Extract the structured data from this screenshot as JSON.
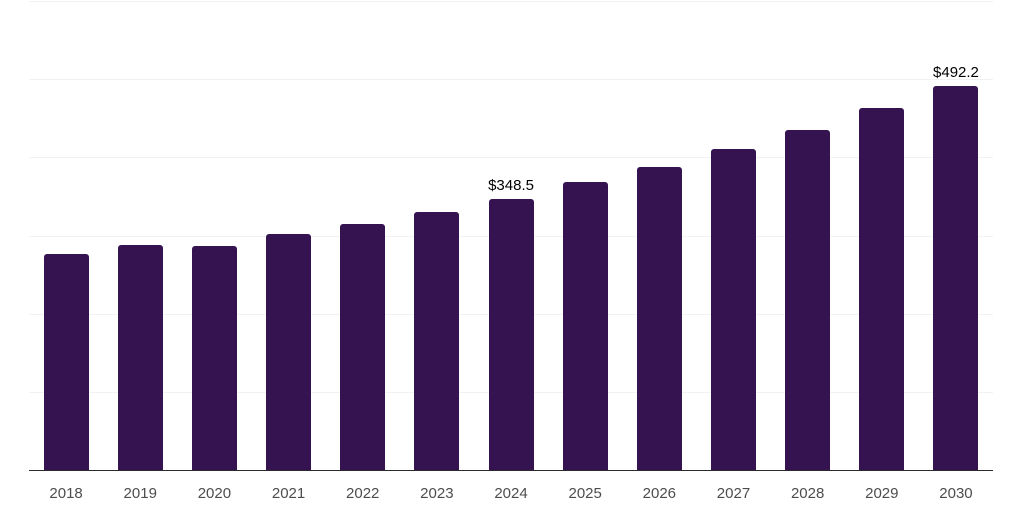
{
  "chart": {
    "colors": {
      "bar": "#351350",
      "gridline": "#f2f2f2",
      "axis_line": "#2b2b2b",
      "tick_label": "#4d4d4d",
      "data_label": "#000000",
      "background": "#ffffff"
    }
  },
  "chart_data": {
    "type": "bar",
    "categories": [
      "2018",
      "2019",
      "2020",
      "2021",
      "2022",
      "2023",
      "2024",
      "2025",
      "2026",
      "2027",
      "2028",
      "2029",
      "2030"
    ],
    "values": [
      277.6,
      289.1,
      287.9,
      303.4,
      316.1,
      331.6,
      348.5,
      369.3,
      389.0,
      412.1,
      436.4,
      464.6,
      492.2
    ],
    "data_labels": {
      "2024": "$348.5",
      "2030": "$492.2"
    },
    "ylim": [
      0,
      600
    ],
    "gridline_step": 100,
    "grid": true,
    "legend": false,
    "y_axis_labels_visible": false,
    "x_axis_labels_visible": true
  }
}
